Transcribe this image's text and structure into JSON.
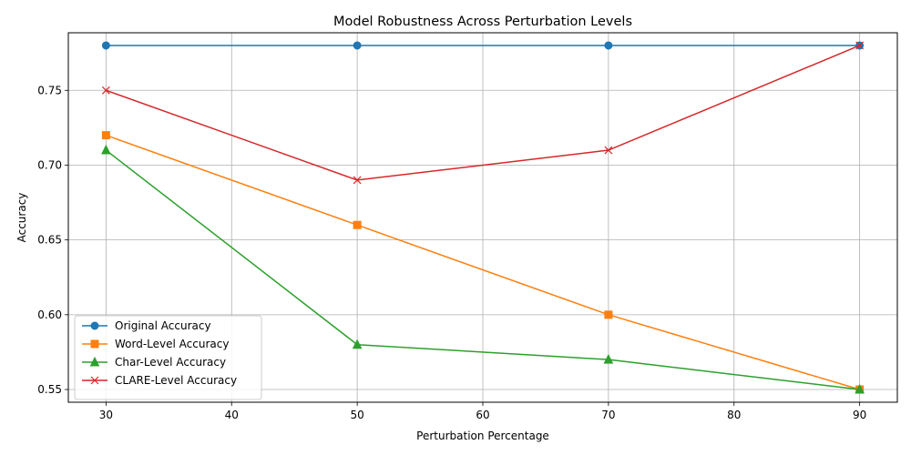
{
  "chart_data": {
    "type": "line",
    "title": "Model Robustness Across Perturbation Levels",
    "xlabel": "Perturbation Percentage",
    "ylabel": "Accuracy",
    "x": [
      30,
      50,
      70,
      90
    ],
    "xlim": [
      27,
      93
    ],
    "ylim": [
      0.5415,
      0.7885
    ],
    "xticks": [
      30,
      40,
      50,
      60,
      70,
      80,
      90
    ],
    "yticks": [
      0.55,
      0.6,
      0.65,
      0.7,
      0.75
    ],
    "ytick_labels": [
      "0.55",
      "0.60",
      "0.65",
      "0.70",
      "0.75"
    ],
    "grid": true,
    "legend_position": "lower-left",
    "series": [
      {
        "name": "Original Accuracy",
        "values": [
          0.78,
          0.78,
          0.78,
          0.78
        ],
        "color": "#1f77b4",
        "marker": "circle"
      },
      {
        "name": "Word-Level Accuracy",
        "values": [
          0.72,
          0.66,
          0.6,
          0.55
        ],
        "color": "#ff7f0e",
        "marker": "square"
      },
      {
        "name": "Char-Level Accuracy",
        "values": [
          0.71,
          0.58,
          0.57,
          0.55
        ],
        "color": "#2ca02c",
        "marker": "triangle"
      },
      {
        "name": "CLARE-Level Accuracy",
        "values": [
          0.75,
          0.69,
          0.71,
          0.78
        ],
        "color": "#d62728",
        "marker": "x"
      }
    ]
  }
}
